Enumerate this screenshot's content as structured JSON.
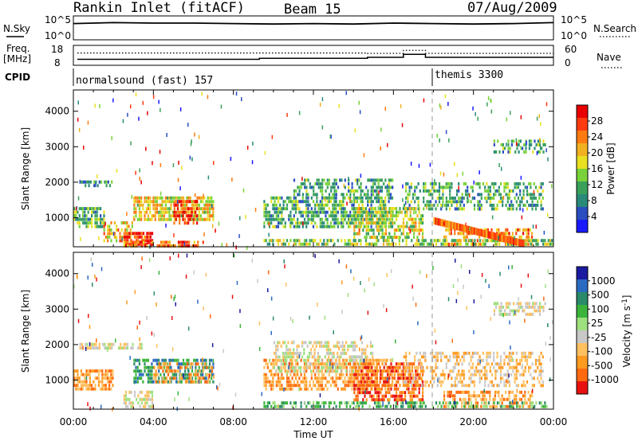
{
  "header": {
    "station": "Rankin Inlet (fitACF)",
    "beam": "Beam 15",
    "date": "07/Aug/2009"
  },
  "side_labels": {
    "nsky": "N.Sky",
    "freq_line1": "Freq.",
    "freq_line2": "[MHz]",
    "cpid": "CPID",
    "nsearch": "N.Search",
    "nave": "Nave"
  },
  "cpid_segments": [
    {
      "label": "normalsound (fast) 157",
      "start_hour": 0
    },
    {
      "label": "themis 3300",
      "start_hour": 18
    }
  ],
  "colors": {
    "power": [
      "#1a1aff",
      "#2a4ec0",
      "#2a8a7a",
      "#3aa05a",
      "#7ad23a",
      "#e8e020",
      "#f0b020",
      "#ff7a10",
      "#ff3a10",
      "#e80000"
    ],
    "velocity": [
      "#e81010",
      "#ff6a10",
      "#ff9a20",
      "#ffc060",
      "#c8c8c8",
      "#9ee080",
      "#3cb43c",
      "#2a8a6a",
      "#2a6ac0",
      "#1a1aa0"
    ]
  },
  "chart_data": [
    {
      "type": "line",
      "name": "sky-noise",
      "ylabel": "N.Sky",
      "y_tick_labels": [
        "10^5",
        "10^0"
      ],
      "ylim_log10": [
        0,
        5
      ],
      "x": [
        0,
        2,
        4,
        6,
        8,
        10,
        12,
        14,
        16,
        18,
        20,
        22,
        24
      ],
      "series": [
        {
          "values_log10": [
            3.4,
            3.6,
            3.5,
            3.5,
            3.4,
            3.3,
            3.4,
            3.3,
            3.5,
            3.4,
            3.3,
            3.4,
            3.6
          ]
        }
      ],
      "right_axis": {
        "label": "N.Search",
        "tick_labels": [
          "10^5",
          "10^0"
        ]
      }
    },
    {
      "type": "line",
      "name": "frequency-nave",
      "ylabel": "Freq. [MHz]",
      "y_tick_labels": [
        "18",
        "8"
      ],
      "ylim": [
        8,
        18
      ],
      "right_axis": {
        "label": "Nave",
        "tick_labels": [
          "60",
          "0"
        ],
        "ylim": [
          0,
          60
        ]
      },
      "frequency_steps": [
        {
          "from": 0.2,
          "to": 9.3,
          "value": 11
        },
        {
          "from": 9.3,
          "to": 14.7,
          "value": 11.5
        },
        {
          "from": 14.7,
          "to": 16.5,
          "value": 12
        },
        {
          "from": 16.5,
          "to": 17.6,
          "value": 13.5
        },
        {
          "from": 17.6,
          "to": 24,
          "value": 12
        }
      ],
      "nave_steps": [
        {
          "from": 0.2,
          "to": 14.7,
          "value": 37
        },
        {
          "from": 14.7,
          "to": 16.5,
          "value": 36
        },
        {
          "from": 16.5,
          "to": 17.6,
          "value": 45
        },
        {
          "from": 17.6,
          "to": 24,
          "value": 36
        }
      ]
    },
    {
      "type": "heatmap",
      "name": "power",
      "ylabel": "Slant Range [km]",
      "xlabel": "Time UT",
      "xlim": [
        0,
        24
      ],
      "ylim": [
        180,
        4600
      ],
      "y_ticks": [
        1000,
        2000,
        3000,
        4000
      ],
      "x_ticks": [
        0,
        4,
        8,
        12,
        16,
        20,
        24
      ],
      "x_tick_labels": [
        "00:00",
        "04:00",
        "08:00",
        "12:00",
        "16:00",
        "20:00",
        "00:00"
      ],
      "colorbar": {
        "label": "Power [dB]",
        "ticks": [
          "4",
          "8",
          "12",
          "16",
          "20",
          "24",
          "28"
        ],
        "range": [
          0,
          30
        ]
      },
      "regions": [
        {
          "t": [
            0.0,
            1.6
          ],
          "r": [
            700,
            1300
          ],
          "level": 10,
          "density": 0.7
        },
        {
          "t": [
            0.3,
            2.0
          ],
          "r": [
            1850,
            2050
          ],
          "level": 8,
          "density": 0.6
        },
        {
          "t": [
            1.5,
            3.0
          ],
          "r": [
            300,
            900
          ],
          "level": 18,
          "density": 0.6
        },
        {
          "t": [
            2.5,
            4.0
          ],
          "r": [
            200,
            600
          ],
          "level": 26,
          "density": 0.8
        },
        {
          "t": [
            3.0,
            7.0
          ],
          "r": [
            900,
            1600
          ],
          "level": 16,
          "density": 0.75
        },
        {
          "t": [
            5.0,
            6.2
          ],
          "r": [
            800,
            1500
          ],
          "level": 25,
          "density": 0.6
        },
        {
          "t": [
            2.5,
            6.5
          ],
          "r": [
            180,
            350
          ],
          "level": 22,
          "density": 0.7
        },
        {
          "t": [
            9.5,
            16.0
          ],
          "r": [
            700,
            1600
          ],
          "level": 9,
          "density": 0.65
        },
        {
          "t": [
            11.0,
            16.0
          ],
          "r": [
            1600,
            2100
          ],
          "level": 8,
          "density": 0.55
        },
        {
          "t": [
            14.0,
            17.5
          ],
          "r": [
            400,
            1300
          ],
          "level": 14,
          "density": 0.6
        },
        {
          "t": [
            16.5,
            23.5
          ],
          "r": [
            1200,
            2000
          ],
          "level": 9,
          "density": 0.45
        },
        {
          "t": [
            18.5,
            23.0
          ],
          "r": [
            180,
            700
          ],
          "level": 20,
          "density": 0.5
        },
        {
          "t": [
            21.0,
            23.6
          ],
          "r": [
            2800,
            3200
          ],
          "level": 8,
          "density": 0.5
        },
        {
          "t": [
            9.5,
            24.0
          ],
          "r": [
            180,
            400
          ],
          "level": 12,
          "density": 0.6
        }
      ],
      "slant_band": {
        "t": [
          18.0,
          22.5
        ],
        "r_start": 900,
        "r_end": 250,
        "level": 22
      }
    },
    {
      "type": "heatmap",
      "name": "velocity",
      "ylabel": "Slant Range [km]",
      "xlabel": "Time UT",
      "xlim": [
        0,
        24
      ],
      "ylim": [
        180,
        4600
      ],
      "y_ticks": [
        1000,
        2000,
        3000,
        4000
      ],
      "x_ticks": [
        0,
        4,
        8,
        12,
        16,
        20,
        24
      ],
      "x_tick_labels": [
        "00:00",
        "04:00",
        "08:00",
        "12:00",
        "16:00",
        "20:00",
        "00:00"
      ],
      "colorbar": {
        "label": "Velocity [m s^-1]",
        "ticks": [
          "1000",
          "500",
          "100",
          "25",
          "-25",
          "-100",
          "-500",
          "-1000"
        ]
      },
      "regions": [
        {
          "t": [
            0.0,
            2.0
          ],
          "r": [
            700,
            1300
          ],
          "level": 2,
          "density": 0.7
        },
        {
          "t": [
            0.3,
            3.5
          ],
          "r": [
            1850,
            2050
          ],
          "level": 4,
          "density": 0.6
        },
        {
          "t": [
            2.5,
            4.0
          ],
          "r": [
            200,
            700
          ],
          "level": 4,
          "density": 0.6
        },
        {
          "t": [
            3.0,
            7.0
          ],
          "r": [
            900,
            1600
          ],
          "level": 7,
          "density": 0.6
        },
        {
          "t": [
            4.0,
            7.0
          ],
          "r": [
            900,
            1500
          ],
          "level": 2,
          "density": 0.5
        },
        {
          "t": [
            9.5,
            16.0
          ],
          "r": [
            700,
            1600
          ],
          "level": 2,
          "density": 0.6
        },
        {
          "t": [
            10.0,
            15.0
          ],
          "r": [
            1200,
            2100
          ],
          "level": 4,
          "density": 0.55
        },
        {
          "t": [
            14.0,
            17.5
          ],
          "r": [
            400,
            1500
          ],
          "level": 1,
          "density": 0.65
        },
        {
          "t": [
            16.5,
            23.5
          ],
          "r": [
            800,
            1800
          ],
          "level": 3,
          "density": 0.45
        },
        {
          "t": [
            18.5,
            23.0
          ],
          "r": [
            180,
            700
          ],
          "level": 2,
          "density": 0.55
        },
        {
          "t": [
            21.0,
            23.6
          ],
          "r": [
            2800,
            3200
          ],
          "level": 4,
          "density": 0.55
        },
        {
          "t": [
            9.5,
            24.0
          ],
          "r": [
            180,
            400
          ],
          "level": 6,
          "density": 0.5
        }
      ]
    }
  ]
}
